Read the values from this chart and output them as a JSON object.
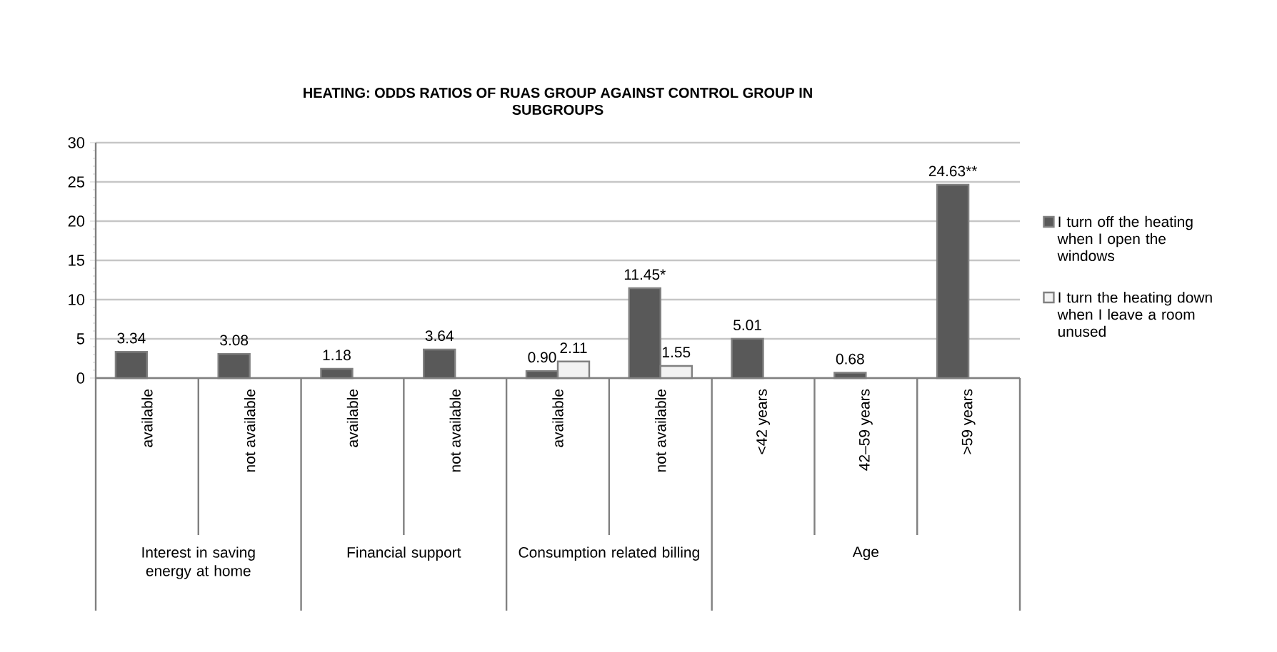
{
  "chart_data": {
    "type": "bar",
    "title": "HEATING: ODDS RATIOS OF RUAS GROUP AGAINST CONTROL GROUP IN SUBGROUPS",
    "categories": [
      "available",
      "not available",
      "available",
      "not available",
      "available",
      "not available",
      "<42 years",
      "42–59 years",
      ">59 years"
    ],
    "series": [
      {
        "name": "I turn off the heating when I open the windows",
        "color": "#595959",
        "values": [
          3.34,
          3.08,
          1.18,
          3.64,
          0.9,
          11.45,
          5.01,
          0.68,
          24.63
        ],
        "value_labels": [
          "3.34",
          "3.08",
          "1.18",
          "3.64",
          "0.90",
          "11.45*",
          "5.01",
          "0.68",
          "24.63**"
        ]
      },
      {
        "name": "I turn the heating down when I leave a room unused",
        "color": "#f2f2f2",
        "values": [
          null,
          null,
          null,
          null,
          2.11,
          1.55,
          null,
          null,
          null
        ],
        "value_labels": [
          null,
          null,
          null,
          null,
          "2.11",
          "1.55",
          null,
          null,
          null
        ]
      }
    ],
    "annotations": [
      "Interest in saving energy at home",
      "Financial support",
      "Consumption related billing",
      "Age"
    ],
    "ylim": [
      0,
      30
    ],
    "yticks": [
      0,
      5,
      10,
      15,
      20,
      25,
      30
    ],
    "grid": "y",
    "legend": "right"
  }
}
